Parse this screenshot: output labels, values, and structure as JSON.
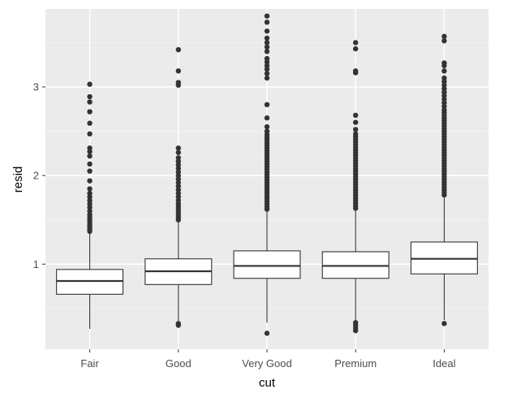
{
  "chart_data": {
    "type": "boxplot",
    "xlabel": "cut",
    "ylabel": "resid",
    "categories": [
      "Fair",
      "Good",
      "Very Good",
      "Premium",
      "Ideal"
    ],
    "ylim": [
      0.04,
      3.88
    ],
    "yticks": [
      1,
      2,
      3
    ],
    "ytick_labels": [
      "1",
      "2",
      "3"
    ],
    "grid": true,
    "colors": {
      "panel": "#ebebeb",
      "grid_major": "#ffffff",
      "grid_minor": "#f4f4f4",
      "box_fill": "#ffffff",
      "box_line": "#333333",
      "outlier": "#333333"
    },
    "boxes": [
      {
        "category": "Fair",
        "q1": 0.66,
        "median": 0.81,
        "q3": 0.94,
        "whisker_low": 0.27,
        "whisker_high": 1.35,
        "outliers": [
          3.03,
          2.89,
          2.83,
          2.72,
          2.59,
          2.47,
          2.31,
          2.27,
          2.22,
          2.13,
          2.05,
          1.94,
          1.85,
          1.8,
          1.76,
          1.72,
          1.68,
          1.64,
          1.6,
          1.56,
          1.53,
          1.5,
          1.47,
          1.44,
          1.42,
          1.39,
          1.37
        ]
      },
      {
        "category": "Good",
        "q1": 0.77,
        "median": 0.92,
        "q3": 1.06,
        "whisker_low": 0.36,
        "whisker_high": 1.47,
        "outliers": [
          3.42,
          3.18,
          3.05,
          3.02,
          2.31,
          2.26,
          2.2,
          2.16,
          2.12,
          2.08,
          2.04,
          2.0,
          1.96,
          1.92,
          1.88,
          1.84,
          1.8,
          1.76,
          1.72,
          1.68,
          1.65,
          1.62,
          1.59,
          1.56,
          1.53,
          1.5,
          0.33,
          0.31
        ]
      },
      {
        "category": "Very Good",
        "q1": 0.84,
        "median": 0.98,
        "q3": 1.15,
        "whisker_low": 0.34,
        "whisker_high": 1.6,
        "outliers": [
          3.8,
          3.73,
          3.63,
          3.55,
          3.5,
          3.45,
          3.4,
          3.32,
          3.28,
          3.24,
          3.2,
          3.15,
          3.1,
          2.8,
          2.65,
          2.55,
          2.5,
          2.46,
          2.43,
          2.4,
          2.37,
          2.34,
          2.31,
          2.28,
          2.25,
          2.22,
          2.19,
          2.16,
          2.13,
          2.1,
          2.07,
          2.04,
          2.01,
          1.98,
          1.95,
          1.92,
          1.89,
          1.86,
          1.83,
          1.8,
          1.77,
          1.74,
          1.71,
          1.68,
          1.65,
          1.62,
          0.22
        ]
      },
      {
        "category": "Premium",
        "q1": 0.84,
        "median": 0.98,
        "q3": 1.14,
        "whisker_low": 0.36,
        "whisker_high": 1.6,
        "outliers": [
          3.5,
          3.43,
          3.18,
          3.16,
          2.68,
          2.6,
          2.52,
          2.47,
          2.44,
          2.41,
          2.38,
          2.35,
          2.32,
          2.29,
          2.26,
          2.23,
          2.2,
          2.17,
          2.14,
          2.11,
          2.08,
          2.05,
          2.02,
          1.99,
          1.96,
          1.93,
          1.9,
          1.87,
          1.84,
          1.81,
          1.78,
          1.75,
          1.72,
          1.69,
          1.66,
          1.63,
          0.34,
          0.31,
          0.28,
          0.25
        ]
      },
      {
        "category": "Ideal",
        "q1": 0.89,
        "median": 1.06,
        "q3": 1.25,
        "whisker_low": 0.37,
        "whisker_high": 1.75,
        "outliers": [
          3.57,
          3.52,
          3.27,
          3.24,
          3.18,
          3.1,
          3.06,
          3.02,
          2.98,
          2.94,
          2.9,
          2.86,
          2.82,
          2.78,
          2.74,
          2.71,
          2.68,
          2.65,
          2.62,
          2.59,
          2.56,
          2.53,
          2.5,
          2.47,
          2.44,
          2.41,
          2.38,
          2.35,
          2.32,
          2.29,
          2.26,
          2.23,
          2.2,
          2.17,
          2.14,
          2.11,
          2.08,
          2.05,
          2.02,
          1.99,
          1.96,
          1.93,
          1.9,
          1.87,
          1.84,
          1.81,
          1.78,
          0.33
        ]
      }
    ]
  }
}
